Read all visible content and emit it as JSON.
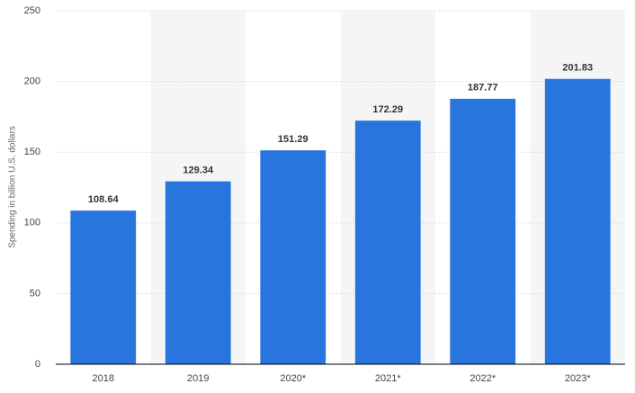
{
  "chart_data": {
    "type": "bar",
    "y_axis_label": "Spending in billion U.S. dollars",
    "categories": [
      "2018",
      "2019",
      "2020*",
      "2021*",
      "2022*",
      "2023*"
    ],
    "values": [
      108.64,
      129.34,
      151.29,
      172.29,
      187.77,
      201.83
    ],
    "color": "#2876dd",
    "ylim": [
      0,
      250
    ],
    "yticks": [
      0,
      50,
      100,
      150,
      200,
      250
    ],
    "grid": true
  }
}
